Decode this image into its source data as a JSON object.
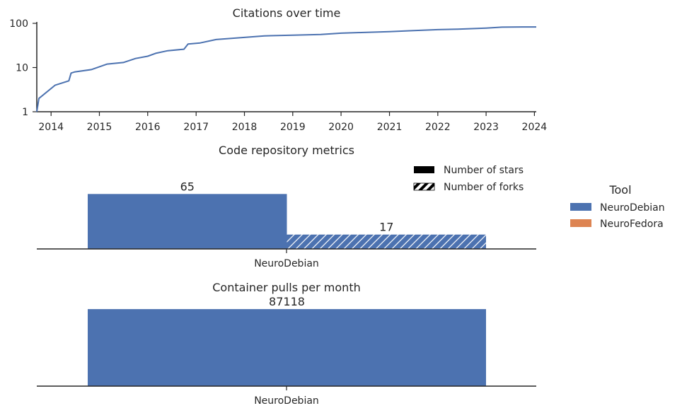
{
  "colors": {
    "neurodebian": "#4c72b0",
    "neurofedora": "#dd8452",
    "axis": "#262626"
  },
  "legend": {
    "title": "Tool",
    "items": [
      {
        "label": "NeuroDebian",
        "color": "#4c72b0"
      },
      {
        "label": "NeuroFedora",
        "color": "#dd8452"
      }
    ]
  },
  "chart_data": [
    {
      "type": "line",
      "title": "Citations over time",
      "xlabel": "",
      "ylabel": "",
      "yscale": "log",
      "ylim": [
        1,
        100
      ],
      "ytick_labels": [
        "1",
        "10",
        "100"
      ],
      "ytick_values": [
        1,
        10,
        100
      ],
      "xlim": [
        "2013-09-15",
        "2024-01-15"
      ],
      "xtick_labels": [
        "2014",
        "2015",
        "2016",
        "2017",
        "2018",
        "2019",
        "2020",
        "2021",
        "2022",
        "2023",
        "2024"
      ],
      "xtick_values": [
        "2014-01-01",
        "2015-01-01",
        "2016-01-01",
        "2017-01-01",
        "2018-01-01",
        "2019-01-01",
        "2020-01-01",
        "2021-01-01",
        "2022-01-01",
        "2023-01-01",
        "2024-01-01"
      ],
      "grid": false,
      "series": [
        {
          "color": "#4c72b0",
          "x": [
            "2013-09-15",
            "2013-10-01",
            "2014-02-01",
            "2014-05-15",
            "2014-06-01",
            "2014-07-01",
            "2014-11-01",
            "2015-03-01",
            "2015-07-01",
            "2015-10-01",
            "2016-01-01",
            "2016-03-01",
            "2016-06-01",
            "2016-10-01",
            "2016-11-01",
            "2017-02-01",
            "2017-06-01",
            "2018-01-01",
            "2018-06-01",
            "2019-01-01",
            "2019-08-01",
            "2020-01-01",
            "2020-06-01",
            "2021-01-01",
            "2021-06-01",
            "2022-01-01",
            "2022-06-01",
            "2023-01-01",
            "2023-05-01",
            "2023-10-01",
            "2024-01-15"
          ],
          "y": [
            1,
            2,
            4,
            5,
            7.5,
            8,
            9,
            12,
            13,
            16,
            18,
            21,
            24,
            26,
            34,
            36,
            43,
            48,
            52,
            54,
            56,
            60,
            62,
            65,
            68,
            72,
            74,
            78,
            82,
            83,
            83
          ]
        }
      ]
    },
    {
      "type": "bar",
      "title": "Code repository metrics",
      "categories": [
        "NeuroDebian"
      ],
      "series": [
        {
          "name": "Number of stars",
          "values": [
            65
          ],
          "hatch": false,
          "color": "#4c72b0"
        },
        {
          "name": "Number of forks",
          "values": [
            17
          ],
          "hatch": true,
          "color": "#4c72b0"
        }
      ],
      "data_labels": [
        "65",
        "17"
      ],
      "legend_placement": "top-right",
      "ylim": [
        0,
        82
      ]
    },
    {
      "type": "bar",
      "title": "Container pulls per month",
      "categories": [
        "NeuroDebian"
      ],
      "values": [
        87118
      ],
      "data_labels": [
        "87118"
      ],
      "ylim": [
        0,
        100000
      ]
    }
  ]
}
